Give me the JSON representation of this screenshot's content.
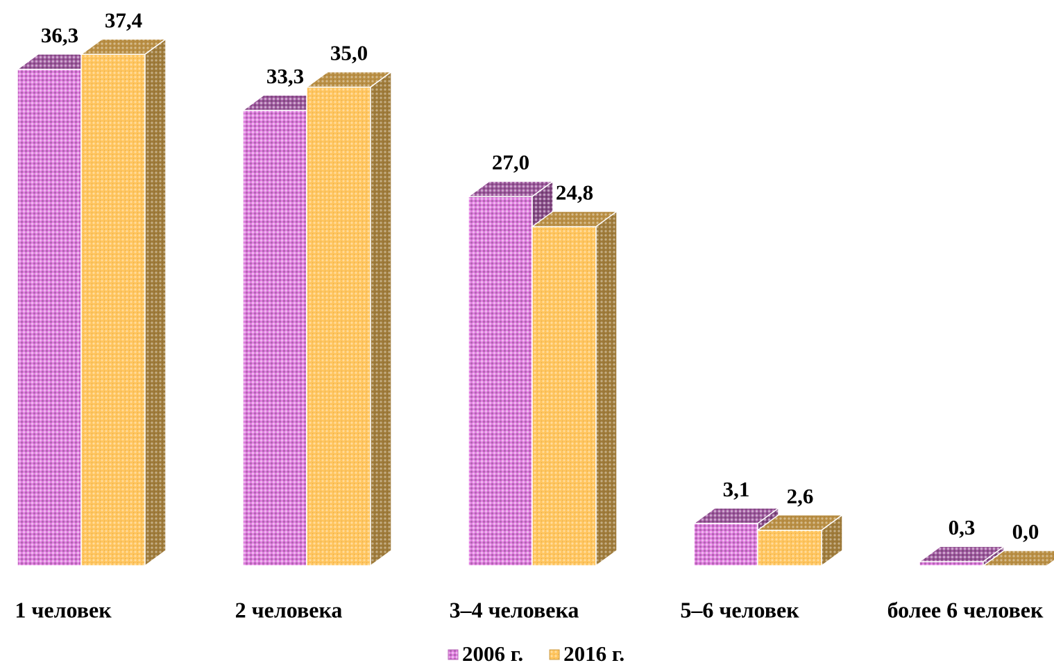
{
  "chart_data": {
    "type": "bar3d",
    "categories": [
      "1 человек",
      "2 человека",
      "3–4 человека",
      "5–6 человек",
      "более 6 человек"
    ],
    "series": [
      {
        "name": "2006 г.",
        "color": "#e07ee0",
        "values": [
          36.3,
          33.3,
          27.0,
          3.1,
          0.3
        ],
        "value_labels": [
          "36,3",
          "33,3",
          "27,0",
          "3,1",
          "0,3"
        ]
      },
      {
        "name": "2016 г.",
        "color": "#ffc45c",
        "values": [
          37.4,
          35.0,
          24.8,
          2.6,
          0.0
        ],
        "value_labels": [
          "37,4",
          "35,0",
          "24,8",
          "2,6",
          "0,0"
        ]
      }
    ],
    "ylim": [
      0,
      40
    ]
  }
}
